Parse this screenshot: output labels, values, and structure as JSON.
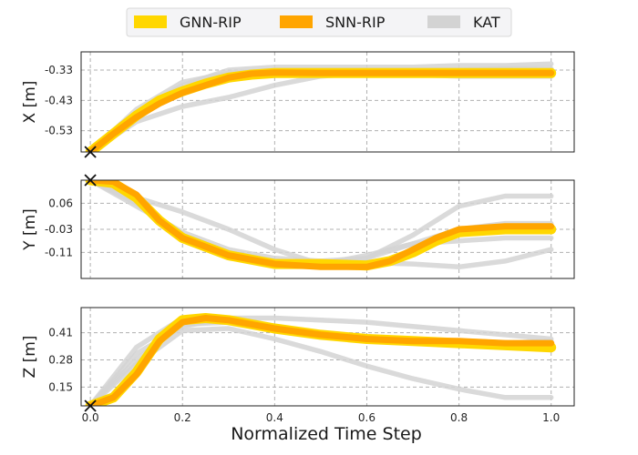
{
  "chart_data": {
    "type": "line",
    "xlabel": "Normalized Time Step",
    "xlim": [
      -0.02,
      1.05
    ],
    "xticks": [
      0.0,
      0.2,
      0.4,
      0.6,
      0.8,
      1.0
    ],
    "xtick_labels": [
      "0.0",
      "0.2",
      "0.4",
      "0.6",
      "0.8",
      "1.0"
    ],
    "grid": true,
    "legend": {
      "placement": "top-center",
      "entries": [
        {
          "name": "GNN-RIP",
          "color": "#FFD700"
        },
        {
          "name": "SNN-RIP",
          "color": "#FFA500"
        },
        {
          "name": "KAT",
          "color": "#D3D3D3"
        }
      ]
    },
    "panels": [
      {
        "ylabel": "X [m]",
        "ylim": [
          -0.6,
          -0.27
        ],
        "yticks": [
          -0.33,
          -0.43,
          -0.53
        ],
        "ytick_labels": [
          "-0.33",
          "-0.43",
          "-0.53"
        ],
        "start_marker": [
          0.0,
          -0.6
        ],
        "series": [
          {
            "name": "GNN-RIP",
            "color": "#FFD700",
            "x": [
              0,
              0.05,
              0.1,
              0.15,
              0.2,
              0.25,
              0.3,
              0.35,
              0.4,
              0.5,
              0.6,
              0.7,
              0.8,
              0.9,
              1.0
            ],
            "y": [
              -0.6,
              -0.54,
              -0.48,
              -0.43,
              -0.4,
              -0.375,
              -0.355,
              -0.345,
              -0.34,
              -0.34,
              -0.34,
              -0.34,
              -0.34,
              -0.34,
              -0.34
            ]
          },
          {
            "name": "SNN-RIP",
            "color": "#FFA500",
            "x": [
              0,
              0.05,
              0.1,
              0.15,
              0.2,
              0.25,
              0.3,
              0.35,
              0.4,
              0.5,
              0.6,
              0.7,
              0.8,
              0.9,
              1.0
            ],
            "y": [
              -0.6,
              -0.54,
              -0.485,
              -0.44,
              -0.405,
              -0.38,
              -0.355,
              -0.342,
              -0.338,
              -0.34,
              -0.34,
              -0.34,
              -0.34,
              -0.34,
              -0.34
            ]
          },
          {
            "name": "KAT",
            "color": "#D3D3D3",
            "x": [
              0,
              0.1,
              0.2,
              0.3,
              0.4,
              0.5,
              0.6,
              0.7,
              0.8,
              0.9,
              1.0
            ],
            "y": [
              -0.6,
              -0.47,
              -0.38,
              -0.33,
              -0.32,
              -0.32,
              -0.32,
              -0.32,
              -0.315,
              -0.315,
              -0.31
            ]
          },
          {
            "name": "KAT",
            "color": "#D3D3D3",
            "x": [
              0,
              0.1,
              0.2,
              0.3,
              0.4,
              0.5,
              0.6,
              0.7,
              0.8,
              0.9,
              1.0
            ],
            "y": [
              -0.6,
              -0.5,
              -0.45,
              -0.42,
              -0.38,
              -0.35,
              -0.34,
              -0.335,
              -0.33,
              -0.33,
              -0.33
            ]
          },
          {
            "name": "KAT",
            "color": "#D3D3D3",
            "x": [
              0,
              0.1,
              0.2,
              0.3,
              0.4,
              0.5,
              0.6,
              0.7,
              0.8,
              0.9,
              1.0
            ],
            "y": [
              -0.6,
              -0.48,
              -0.4,
              -0.36,
              -0.34,
              -0.34,
              -0.345,
              -0.345,
              -0.35,
              -0.35,
              -0.35
            ]
          },
          {
            "name": "KAT",
            "color": "#D3D3D3",
            "x": [
              0,
              0.1,
              0.2,
              0.3,
              0.4,
              0.5,
              0.6,
              0.7,
              0.8,
              0.9,
              1.0
            ],
            "y": [
              -0.6,
              -0.46,
              -0.37,
              -0.34,
              -0.33,
              -0.33,
              -0.33,
              -0.33,
              -0.33,
              -0.325,
              -0.325
            ]
          }
        ]
      },
      {
        "ylabel": "Y [m]",
        "ylim": [
          -0.2,
          0.14
        ],
        "yticks": [
          0.06,
          -0.03,
          -0.11
        ],
        "ytick_labels": [
          "0.06",
          "-0.03",
          "-0.11"
        ],
        "start_marker": [
          0.0,
          0.14
        ],
        "series": [
          {
            "name": "GNN-RIP",
            "color": "#FFD700",
            "x": [
              0,
              0.05,
              0.1,
              0.15,
              0.2,
              0.3,
              0.4,
              0.5,
              0.6,
              0.65,
              0.7,
              0.75,
              0.8,
              0.9,
              1.0
            ],
            "y": [
              0.14,
              0.13,
              0.08,
              0.0,
              -0.06,
              -0.12,
              -0.15,
              -0.15,
              -0.155,
              -0.14,
              -0.11,
              -0.07,
              -0.04,
              -0.03,
              -0.03
            ]
          },
          {
            "name": "SNN-RIP",
            "color": "#FFA500",
            "x": [
              0,
              0.05,
              0.1,
              0.15,
              0.2,
              0.3,
              0.4,
              0.5,
              0.6,
              0.65,
              0.7,
              0.75,
              0.8,
              0.9,
              1.0
            ],
            "y": [
              0.14,
              0.135,
              0.09,
              0.0,
              -0.06,
              -0.12,
              -0.15,
              -0.16,
              -0.16,
              -0.14,
              -0.1,
              -0.06,
              -0.03,
              -0.02,
              -0.02
            ]
          },
          {
            "name": "KAT",
            "color": "#D3D3D3",
            "x": [
              0,
              0.1,
              0.2,
              0.3,
              0.4,
              0.5,
              0.6,
              0.7,
              0.8,
              0.9,
              1.0
            ],
            "y": [
              0.14,
              0.08,
              0.03,
              -0.03,
              -0.1,
              -0.15,
              -0.13,
              -0.05,
              0.05,
              0.085,
              0.085
            ]
          },
          {
            "name": "KAT",
            "color": "#D3D3D3",
            "x": [
              0,
              0.1,
              0.2,
              0.3,
              0.4,
              0.5,
              0.6,
              0.7,
              0.8,
              0.9,
              1.0
            ],
            "y": [
              0.14,
              0.07,
              -0.06,
              -0.12,
              -0.15,
              -0.14,
              -0.13,
              -0.08,
              -0.03,
              -0.01,
              -0.01
            ]
          },
          {
            "name": "KAT",
            "color": "#D3D3D3",
            "x": [
              0,
              0.1,
              0.2,
              0.3,
              0.4,
              0.5,
              0.6,
              0.7,
              0.8,
              0.9,
              1.0
            ],
            "y": [
              0.14,
              0.05,
              -0.04,
              -0.1,
              -0.13,
              -0.14,
              -0.145,
              -0.15,
              -0.16,
              -0.14,
              -0.1
            ]
          },
          {
            "name": "KAT",
            "color": "#D3D3D3",
            "x": [
              0,
              0.1,
              0.2,
              0.3,
              0.4,
              0.5,
              0.6,
              0.7,
              0.8,
              0.9,
              1.0
            ],
            "y": [
              0.14,
              0.06,
              -0.05,
              -0.11,
              -0.14,
              -0.15,
              -0.12,
              -0.08,
              -0.07,
              -0.06,
              -0.06
            ]
          }
        ]
      },
      {
        "ylabel": "Z [m]",
        "ylim": [
          0.06,
          0.53
        ],
        "yticks": [
          0.41,
          0.28,
          0.15
        ],
        "ytick_labels": [
          "0.41",
          "0.28",
          "0.15"
        ],
        "start_marker": [
          0.0,
          0.06
        ],
        "series": [
          {
            "name": "GNN-RIP",
            "color": "#FFD700",
            "x": [
              0,
              0.05,
              0.1,
              0.15,
              0.2,
              0.25,
              0.3,
              0.35,
              0.4,
              0.5,
              0.6,
              0.7,
              0.8,
              0.9,
              1.0
            ],
            "y": [
              0.06,
              0.1,
              0.22,
              0.38,
              0.47,
              0.48,
              0.47,
              0.45,
              0.43,
              0.4,
              0.38,
              0.37,
              0.36,
              0.35,
              0.34
            ]
          },
          {
            "name": "SNN-RIP",
            "color": "#FFA500",
            "x": [
              0,
              0.05,
              0.1,
              0.15,
              0.2,
              0.25,
              0.3,
              0.35,
              0.4,
              0.5,
              0.6,
              0.7,
              0.8,
              0.9,
              1.0
            ],
            "y": [
              0.06,
              0.1,
              0.21,
              0.37,
              0.46,
              0.48,
              0.47,
              0.45,
              0.43,
              0.4,
              0.38,
              0.37,
              0.37,
              0.36,
              0.36
            ]
          },
          {
            "name": "KAT",
            "color": "#D3D3D3",
            "x": [
              0,
              0.1,
              0.2,
              0.3,
              0.4,
              0.5,
              0.6,
              0.7,
              0.8,
              0.9,
              1.0
            ],
            "y": [
              0.06,
              0.26,
              0.42,
              0.43,
              0.38,
              0.32,
              0.25,
              0.19,
              0.14,
              0.1,
              0.1
            ]
          },
          {
            "name": "KAT",
            "color": "#D3D3D3",
            "x": [
              0,
              0.1,
              0.2,
              0.3,
              0.4,
              0.5,
              0.6,
              0.7,
              0.8,
              0.9,
              1.0
            ],
            "y": [
              0.06,
              0.31,
              0.44,
              0.48,
              0.48,
              0.47,
              0.46,
              0.44,
              0.42,
              0.4,
              0.38
            ]
          },
          {
            "name": "KAT",
            "color": "#D3D3D3",
            "x": [
              0,
              0.1,
              0.2,
              0.3,
              0.4,
              0.5,
              0.6,
              0.7,
              0.8,
              0.9,
              1.0
            ],
            "y": [
              0.06,
              0.34,
              0.48,
              0.47,
              0.43,
              0.39,
              0.37,
              0.36,
              0.36,
              0.36,
              0.37
            ]
          },
          {
            "name": "KAT",
            "color": "#D3D3D3",
            "x": [
              0,
              0.1,
              0.2,
              0.3,
              0.4,
              0.5,
              0.6,
              0.7,
              0.8,
              0.9,
              1.0
            ],
            "y": [
              0.06,
              0.28,
              0.45,
              0.46,
              0.44,
              0.4,
              0.37,
              0.36,
              0.35,
              0.34,
              0.34
            ]
          }
        ]
      }
    ]
  }
}
